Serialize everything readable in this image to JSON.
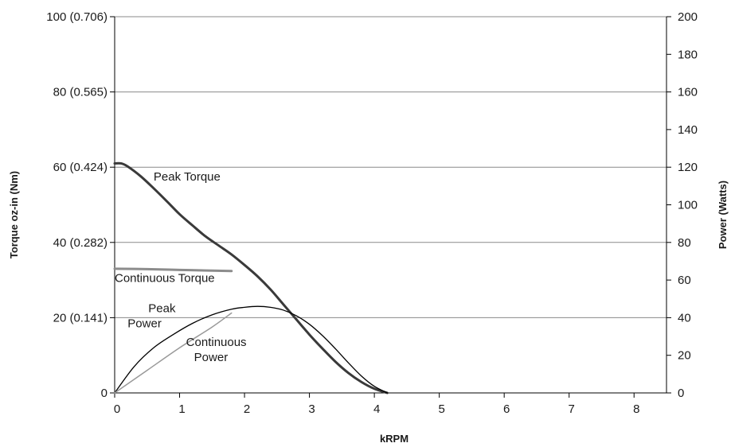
{
  "chart_data": {
    "type": "line",
    "xlabel": "kRPM",
    "ylabel_left": "Torque oz-in (Nm)",
    "ylabel_right": "Power (Watts)",
    "xlim": [
      0,
      8.5
    ],
    "ylim_left": [
      0,
      100
    ],
    "ylim_right": [
      0,
      200
    ],
    "x_ticks": [
      "0",
      "1",
      "2",
      "3",
      "4",
      "5",
      "6",
      "7",
      "8"
    ],
    "y_ticks_left": [
      "0",
      "20 (0.141)",
      "40 (0.282)",
      "60 (0.424)",
      "80 (0.565)",
      "100 (0.706)"
    ],
    "y_ticks_right": [
      "0",
      "20",
      "40",
      "60",
      "80",
      "100",
      "120",
      "140",
      "160",
      "180",
      "200"
    ],
    "grid": "horizontal",
    "series": [
      {
        "name": "Peak Torque",
        "axis": "left",
        "color": "#3a3a3a",
        "x": [
          0,
          0.1,
          0.2,
          0.4,
          0.6,
          0.8,
          1.0,
          1.2,
          1.4,
          1.6,
          1.8,
          2.0,
          2.2,
          2.4,
          2.6,
          2.8,
          3.0,
          3.2,
          3.4,
          3.6,
          3.8,
          4.0,
          4.2
        ],
        "y": [
          61,
          61,
          60.2,
          57.6,
          54.4,
          51,
          47.5,
          44.5,
          41.6,
          39.2,
          36.8,
          34,
          31,
          27.5,
          23.5,
          19.5,
          15.5,
          11.8,
          8.3,
          5.3,
          2.9,
          1.1,
          0
        ]
      },
      {
        "name": "Continuous Torque",
        "axis": "left",
        "color": "#8c8c8c",
        "x": [
          0,
          0.5,
          1.0,
          1.5,
          1.8
        ],
        "y": [
          33,
          32.9,
          32.7,
          32.5,
          32.4
        ]
      },
      {
        "name": "Peak Power",
        "axis": "right",
        "color": "#000000",
        "x": [
          0,
          0.3,
          0.6,
          0.9,
          1.2,
          1.5,
          1.8,
          2.0,
          2.2,
          2.4,
          2.6,
          2.8,
          3.0,
          3.2,
          3.4,
          3.6,
          3.8,
          4.0,
          4.2
        ],
        "y": [
          0,
          14,
          24,
          31,
          37,
          41.5,
          44.5,
          45.5,
          46,
          45.5,
          44,
          41,
          36.5,
          30.5,
          23.5,
          16,
          9,
          3.5,
          0
        ]
      },
      {
        "name": "Continuous Power",
        "axis": "right",
        "color": "#999999",
        "x": [
          0,
          0.5,
          1.0,
          1.5,
          1.8
        ],
        "y": [
          0,
          12,
          24,
          35,
          42.5
        ]
      }
    ],
    "annotations": [
      {
        "lines": [
          "Peak Torque"
        ],
        "x": 0.6,
        "y": 56.5
      },
      {
        "lines": [
          "Continuous Torque"
        ],
        "x": 0.0,
        "y": 29.5
      },
      {
        "lines": [
          "Peak",
          "Power"
        ],
        "x": 0.2,
        "y": 21.5
      },
      {
        "lines": [
          "Continuous",
          "Power"
        ],
        "x": 1.1,
        "y": 12.5
      }
    ]
  }
}
